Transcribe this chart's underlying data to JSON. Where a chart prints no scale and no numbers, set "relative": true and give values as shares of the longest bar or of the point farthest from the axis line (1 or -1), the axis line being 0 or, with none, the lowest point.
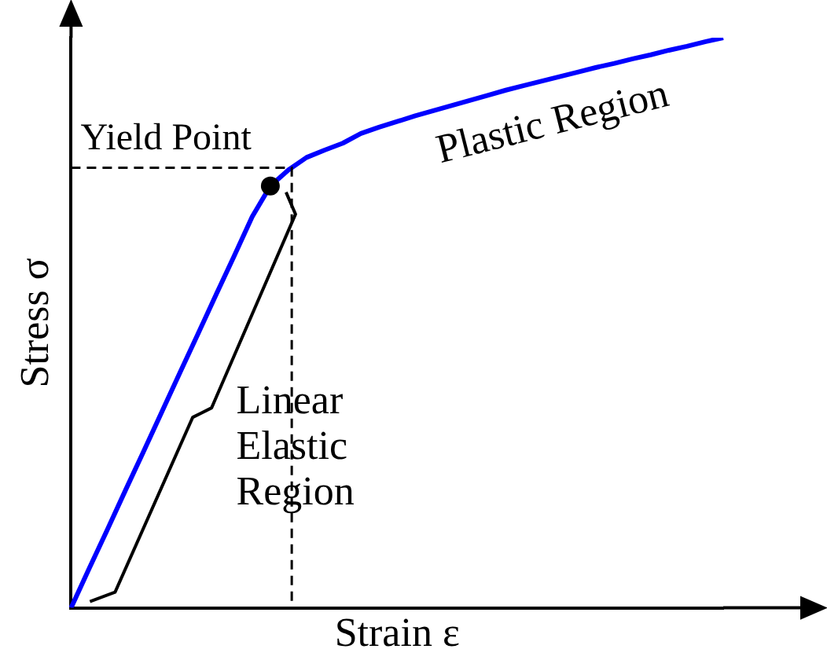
{
  "chart_data": {
    "type": "line",
    "relative": true,
    "xlabel": "Strain ε",
    "ylabel": "Stress σ",
    "legend": false,
    "grid": false,
    "tick_labels": false,
    "categories": [
      null,
      null,
      null,
      null,
      null,
      null,
      null,
      null,
      null,
      null,
      null,
      null,
      null,
      null,
      null,
      null,
      null,
      null,
      null,
      null,
      null,
      null,
      null,
      null,
      null,
      null,
      null,
      null,
      null,
      null,
      null,
      null,
      null,
      null,
      null,
      null,
      null
    ],
    "series": [
      {
        "color": "#0000ff",
        "marker": "none",
        "line_style": "solid",
        "values": [
          0,
          0.069,
          0.137,
          0.206,
          0.274,
          0.343,
          0.412,
          0.48,
          0.549,
          0.617,
          0.686,
          0.74,
          0.768,
          0.79,
          0.803,
          0.815,
          0.832,
          0.843,
          0.853,
          0.863,
          0.872,
          0.881,
          0.89,
          0.899,
          0.908,
          0.916,
          0.924,
          0.932,
          0.94,
          0.948,
          0.955,
          0.963,
          0.97,
          0.978,
          0.985,
          0.993,
          1
        ]
      }
    ],
    "ref_lines": [
      {
        "axis": "y",
        "value": 0.772,
        "label": "Yield Point",
        "color": "#000000",
        "line_style": "dashed"
      }
    ],
    "annotations": [
      "Plastic Region",
      "Linear\nElastic\nRegion"
    ]
  }
}
